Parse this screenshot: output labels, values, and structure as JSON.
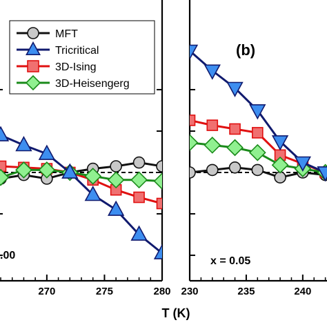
{
  "xlabel": "T (K)",
  "legend": {
    "placement": "top",
    "entries": [
      {
        "name": "MFT",
        "color": "#111111",
        "fill": "#c8c8c8",
        "marker": "circle"
      },
      {
        "name": "Tricritical",
        "color": "#101a6e",
        "fill": "#3d8ef0",
        "marker": "triangle-up"
      },
      {
        "name": "3D-Ising",
        "color": "#e01010",
        "fill": "#f07070",
        "marker": "square"
      },
      {
        "name": "3D-Heisengerg",
        "color": "#1a8a1a",
        "fill": "#90f090",
        "marker": "diamond"
      }
    ]
  },
  "chart_data": [
    {
      "panel": "a",
      "type": "line",
      "annotation": ".00",
      "xlabel": "T (K)",
      "xlim": [
        265.7,
        280
      ],
      "xticks": [
        270,
        275,
        280
      ],
      "ylim": [
        -1.0,
        1.0
      ],
      "y_minor_ticks": [
        -0.667,
        -0.333,
        0.333,
        0.667
      ],
      "reference_line": {
        "y": 0.0,
        "style": "dashed"
      },
      "series": [
        {
          "name": "MFT",
          "marker": "circle",
          "x": [
            266,
            268,
            270,
            272,
            274,
            276,
            278,
            280
          ],
          "y": [
            -0.05,
            -0.02,
            -0.05,
            0.0,
            0.03,
            0.05,
            0.08,
            0.05
          ]
        },
        {
          "name": "3D-Ising",
          "marker": "square",
          "x": [
            266,
            268,
            270,
            272,
            274,
            276,
            278,
            280
          ],
          "y": [
            0.05,
            0.04,
            0.03,
            0.0,
            -0.06,
            -0.14,
            -0.2,
            -0.25
          ]
        },
        {
          "name": "3D-Heisengerg",
          "marker": "diamond",
          "x": [
            266,
            268,
            270,
            272,
            274,
            276,
            278,
            280
          ],
          "y": [
            -0.04,
            0.02,
            0.02,
            0.0,
            -0.03,
            -0.06,
            -0.06,
            -0.07
          ]
        },
        {
          "name": "Tricritical",
          "marker": "triangle-up",
          "x": [
            266,
            268,
            270,
            272,
            274,
            276,
            278,
            280
          ],
          "y": [
            0.3,
            0.22,
            0.15,
            0.0,
            -0.18,
            -0.3,
            -0.5,
            -0.65
          ]
        }
      ]
    },
    {
      "panel": "b",
      "type": "line",
      "label": "(b)",
      "annotation": "x = 0.05",
      "xlim": [
        230,
        243
      ],
      "xticks": [
        230,
        235,
        240
      ],
      "ylim": [
        -1.0,
        1.0
      ],
      "y_minor_ticks": [
        -0.667,
        -0.333,
        0.333,
        0.667
      ],
      "reference_line": {
        "y": 0.0,
        "style": "dashed"
      },
      "series": [
        {
          "name": "MFT",
          "marker": "circle",
          "x": [
            230,
            232,
            234,
            236,
            238,
            240,
            242
          ],
          "y": [
            0.0,
            0.02,
            0.04,
            0.02,
            -0.04,
            0.0,
            -0.02
          ]
        },
        {
          "name": "3D-Ising",
          "marker": "square",
          "x": [
            230,
            232,
            234,
            236,
            238,
            240,
            242
          ],
          "y": [
            0.42,
            0.38,
            0.35,
            0.32,
            0.14,
            0.07,
            0.0
          ]
        },
        {
          "name": "3D-Heisengerg",
          "marker": "diamond",
          "x": [
            230,
            232,
            234,
            236,
            238,
            240,
            242
          ],
          "y": [
            0.24,
            0.22,
            0.2,
            0.16,
            0.06,
            0.03,
            0.0
          ]
        },
        {
          "name": "Tricritical",
          "marker": "triangle-down",
          "x": [
            230,
            232,
            234,
            236,
            238,
            240,
            242
          ],
          "y": [
            0.98,
            0.82,
            0.68,
            0.5,
            0.25,
            0.08,
            0.0
          ]
        }
      ]
    }
  ]
}
